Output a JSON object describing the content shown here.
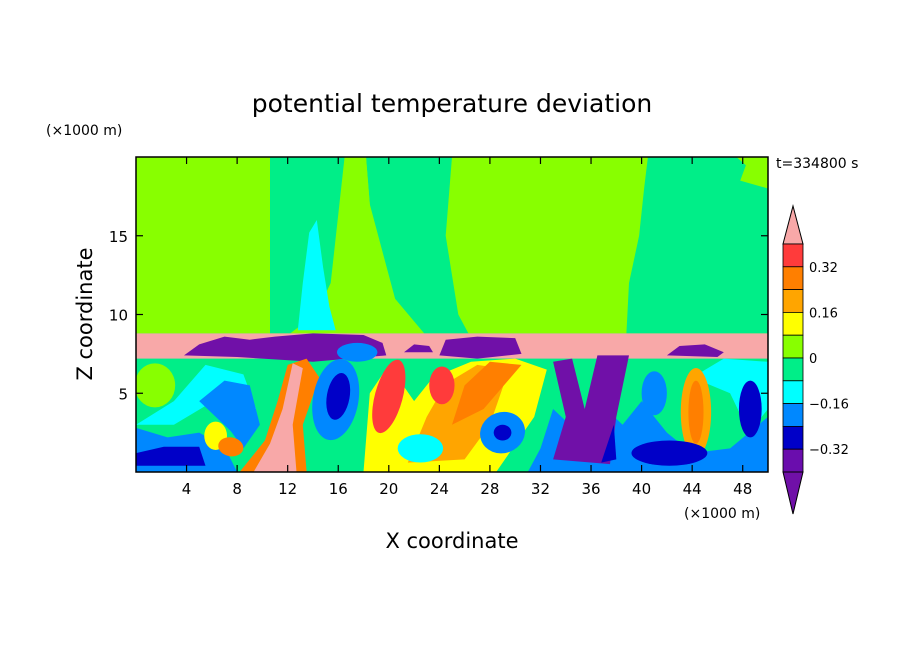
{
  "chart_data": {
    "type": "heatmap",
    "title": "potential temperature deviation",
    "time_label": "t=334800 s",
    "xlabel": "X coordinate",
    "ylabel": "Z coordinate",
    "x_unit": "(×1000 m)",
    "y_unit": "(×1000 m)",
    "xlim": [
      0,
      50
    ],
    "ylim": [
      0,
      20
    ],
    "x_ticks": [
      4,
      8,
      12,
      16,
      20,
      24,
      28,
      32,
      36,
      40,
      44,
      48
    ],
    "y_ticks": [
      5,
      10,
      15
    ],
    "colorbar": {
      "labels": [
        "0.32",
        "0.16",
        "0",
        "−0.16",
        "−0.32"
      ],
      "label_levels": [
        0.32,
        0.16,
        0,
        -0.16,
        -0.32
      ],
      "levels": [
        0.4,
        0.32,
        0.24,
        0.16,
        0.08,
        0,
        -0.08,
        -0.16,
        -0.24,
        -0.32,
        -0.4
      ],
      "colors": [
        "#ff3b3b",
        "#ff7f00",
        "#ffa500",
        "#ffff00",
        "#88ff00",
        "#00ee88",
        "#00ffff",
        "#0088ff",
        "#0000c8",
        "#6a0dad"
      ],
      "over_color": "#f8a8a8",
      "under_color": "#7010a8"
    },
    "colors": {
      "upper": "#88ff00",
      "plume": "#00ee88",
      "cyan": "#00ffff",
      "band": "#f8a8a8",
      "cap": "#7010a8"
    }
  }
}
